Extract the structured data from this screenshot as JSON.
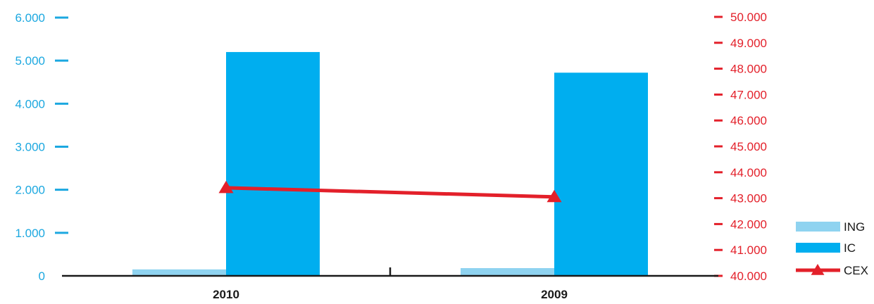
{
  "chart_data": {
    "type": "bar",
    "categories": [
      "2010",
      "2009"
    ],
    "series": [
      {
        "name": "ING",
        "type": "bar",
        "axis": "left",
        "color": "#8fd3f0",
        "values": [
          150,
          180
        ]
      },
      {
        "name": "IC",
        "type": "bar",
        "axis": "left",
        "color": "#00aeef",
        "values": [
          5200,
          4720
        ]
      },
      {
        "name": "CEX",
        "type": "line",
        "axis": "right",
        "color": "#e3202a",
        "marker": "triangle",
        "values": [
          43400,
          43050
        ]
      }
    ],
    "y_left": {
      "range": [
        0,
        6000
      ],
      "ticks": [
        0,
        1000,
        2000,
        3000,
        4000,
        5000,
        6000
      ],
      "tick_labels": [
        "0",
        "1.000",
        "2.000",
        "3.000",
        "4.000",
        "5.000",
        "6.000"
      ],
      "color": "#1ca8e0"
    },
    "y_right": {
      "range": [
        40000,
        50000
      ],
      "ticks": [
        40000,
        41000,
        42000,
        43000,
        44000,
        45000,
        46000,
        47000,
        48000,
        49000,
        50000
      ],
      "tick_labels": [
        "40.000",
        "41.000",
        "42.000",
        "43.000",
        "44.000",
        "45.000",
        "46.000",
        "47.000",
        "48.000",
        "49.000",
        "50.000"
      ],
      "color": "#e3202a"
    },
    "title": "",
    "xlabel": "",
    "ylabel": "",
    "grid": false,
    "legend": {
      "placement": "bottom-right",
      "entries": [
        "ING",
        "IC",
        "CEX"
      ]
    }
  }
}
